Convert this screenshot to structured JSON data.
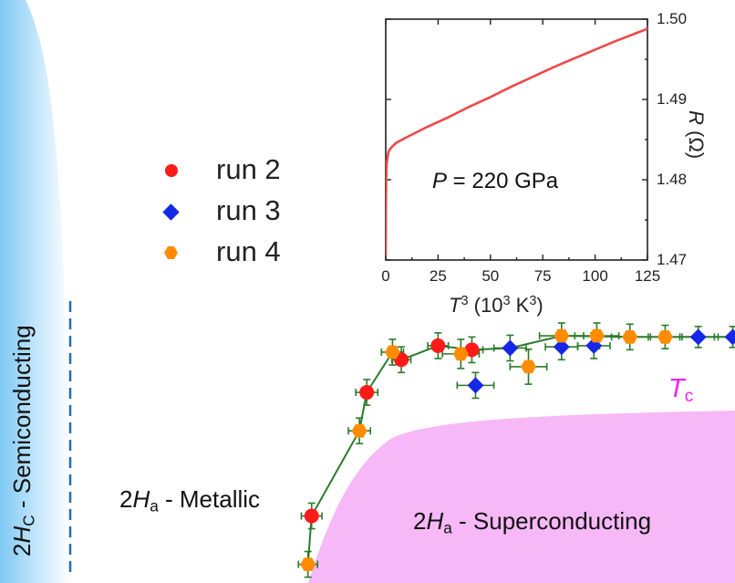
{
  "chart_data": [
    {
      "type": "scatter",
      "title": "",
      "xlabel": "",
      "ylabel": "",
      "legend": {
        "placement": "top-left",
        "entries": [
          {
            "name": "run 2",
            "color": "#ff1a1a",
            "marker": "circle"
          },
          {
            "name": "run 3",
            "color": "#1428e6",
            "marker": "diamond"
          },
          {
            "name": "run 4",
            "color": "#ff8c00",
            "marker": "hexagon"
          }
        ]
      },
      "x_range": [
        0,
        1
      ],
      "y_range": [
        0,
        1
      ],
      "curve_label": "T",
      "curve_label_sub": "c",
      "curve_color": "#2b7a2b",
      "regions": {
        "semiconducting": {
          "prefix": "2",
          "H": "H",
          "sub": "C",
          "suffix": " - Semiconducting",
          "color": "#7ec8f2"
        },
        "metallic": {
          "prefix": "2",
          "H": "H",
          "sub": "a",
          "suffix": " - Metallic"
        },
        "superconducting": {
          "prefix": "2",
          "H": "H",
          "sub": "a",
          "suffix": " - Superconducting",
          "color": "#f7b8f7"
        }
      },
      "series": [
        {
          "name": "run 2",
          "points": [
            {
              "x": 0.424,
              "y": 0.115,
              "xerr": 0.014,
              "yerr": 0.022
            },
            {
              "x": 0.499,
              "y": 0.327,
              "xerr": 0.015,
              "yerr": 0.022
            },
            {
              "x": 0.546,
              "y": 0.383,
              "xerr": 0.013,
              "yerr": 0.022
            },
            {
              "x": 0.596,
              "y": 0.407,
              "xerr": 0.014,
              "yerr": 0.022
            },
            {
              "x": 0.642,
              "y": 0.4,
              "xerr": 0.015,
              "yerr": 0.022
            }
          ]
        },
        {
          "name": "run 3",
          "points": [
            {
              "x": 0.647,
              "y": 0.339,
              "xerr": 0.025,
              "yerr": 0.022
            },
            {
              "x": 0.694,
              "y": 0.403,
              "xerr": 0.022,
              "yerr": 0.022
            },
            {
              "x": 0.764,
              "y": 0.405,
              "xerr": 0.022,
              "yerr": 0.022
            },
            {
              "x": 0.808,
              "y": 0.407,
              "xerr": 0.022,
              "yerr": 0.022
            },
            {
              "x": 0.95,
              "y": 0.422,
              "xerr": 0.022,
              "yerr": 0.018
            },
            {
              "x": 0.997,
              "y": 0.422,
              "xerr": 0.02,
              "yerr": 0.018
            }
          ]
        },
        {
          "name": "run 4",
          "points": [
            {
              "x": 0.419,
              "y": 0.032,
              "xerr": 0.013,
              "yerr": 0.022
            },
            {
              "x": 0.489,
              "y": 0.261,
              "xerr": 0.015,
              "yerr": 0.022
            },
            {
              "x": 0.534,
              "y": 0.396,
              "xerr": 0.015,
              "yerr": 0.022
            },
            {
              "x": 0.627,
              "y": 0.393,
              "xerr": 0.025,
              "yerr": 0.025
            },
            {
              "x": 0.719,
              "y": 0.371,
              "xerr": 0.025,
              "yerr": 0.03
            },
            {
              "x": 0.764,
              "y": 0.424,
              "xerr": 0.03,
              "yerr": 0.022
            },
            {
              "x": 0.812,
              "y": 0.424,
              "xerr": 0.03,
              "yerr": 0.022
            },
            {
              "x": 0.857,
              "y": 0.422,
              "xerr": 0.025,
              "yerr": 0.022
            },
            {
              "x": 0.905,
              "y": 0.422,
              "xerr": 0.02,
              "yerr": 0.02
            }
          ]
        }
      ]
    },
    {
      "type": "line",
      "title": "",
      "annotation": {
        "P": "P",
        "rest": " = 220 GPa"
      },
      "xlabel": {
        "T": "T",
        "exp": "3",
        "unit_open": " (10",
        "unit_exp1": "3",
        "unit_mid": " K",
        "unit_exp2": "3",
        "unit_close": ")"
      },
      "ylabel": {
        "R": "R",
        "unit": " (Ω)"
      },
      "xlim": [
        0,
        125
      ],
      "ylim": [
        1.47,
        1.5
      ],
      "x_ticks": [
        "0",
        "25",
        "50",
        "75",
        "100",
        "125"
      ],
      "y_ticks": [
        "1.47",
        "1.48",
        "1.49",
        "1.50"
      ],
      "line_color": "#f04848",
      "x": [
        0.0,
        0.05,
        0.1,
        0.2,
        0.3,
        0.5,
        0.8,
        1.0,
        1.5,
        2,
        3,
        5,
        10,
        20,
        30,
        40,
        50,
        60,
        70,
        80,
        90,
        100,
        110,
        120,
        125
      ],
      "y": [
        1.4705,
        1.474,
        1.477,
        1.4795,
        1.481,
        1.482,
        1.4826,
        1.4831,
        1.4836,
        1.4838,
        1.4841,
        1.4846,
        1.4853,
        1.4866,
        1.4878,
        1.4891,
        1.4903,
        1.4916,
        1.4928,
        1.494,
        1.4951,
        1.4962,
        1.4973,
        1.4983,
        1.4988
      ]
    }
  ]
}
